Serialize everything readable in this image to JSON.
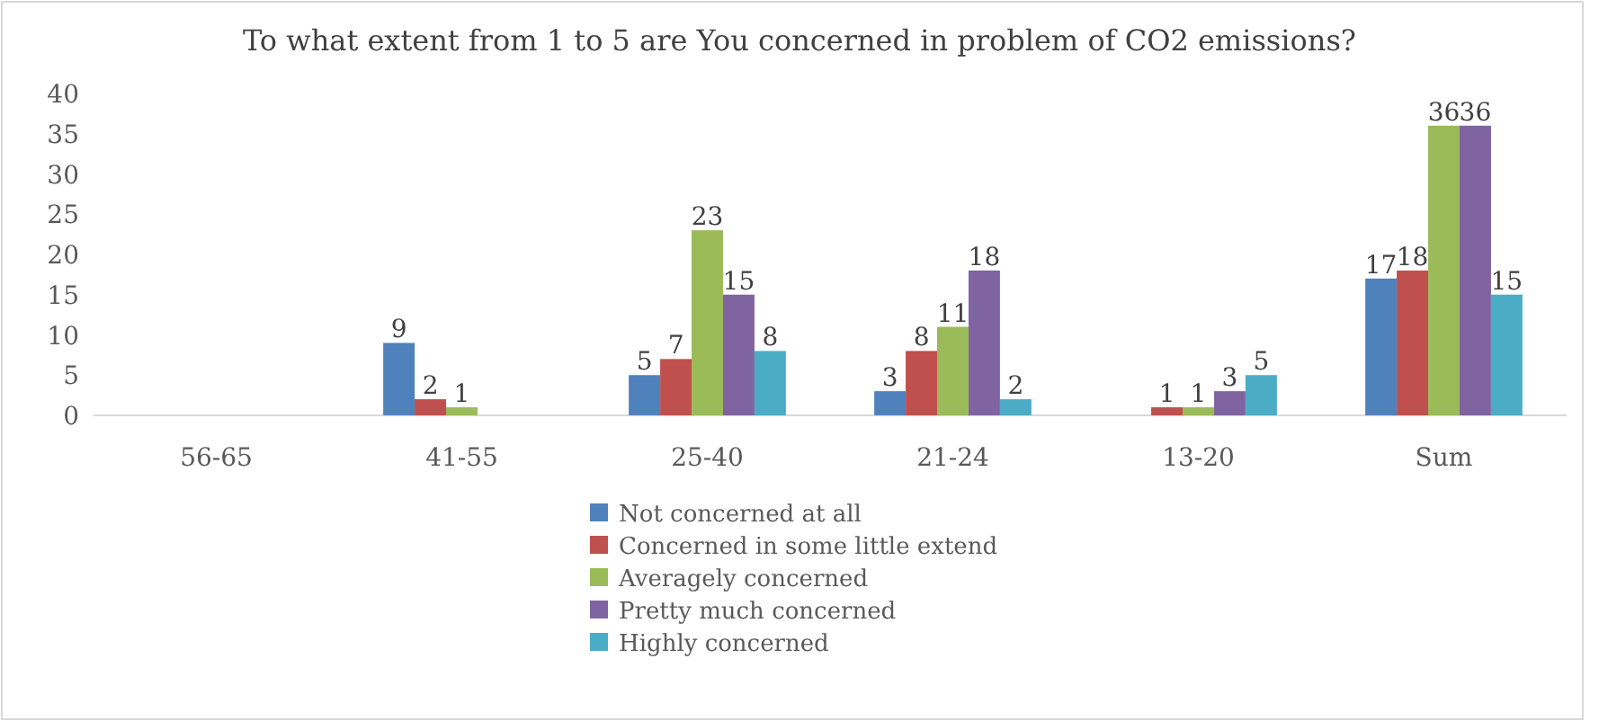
{
  "chart_data": {
    "type": "bar",
    "title": "To what extent from 1 to 5 are You concerned in problem of CO2 emissions?",
    "categories": [
      "56-65",
      "41-55",
      "25-40",
      "21-24",
      "13-20",
      "Sum"
    ],
    "series": [
      {
        "name": "Not concerned at all",
        "color": "#4f81bd",
        "values": [
          null,
          9,
          5,
          3,
          null,
          17
        ]
      },
      {
        "name": "Concerned in some little extend",
        "color": "#c0504d",
        "values": [
          null,
          2,
          7,
          8,
          1,
          18
        ]
      },
      {
        "name": "Averagely concerned",
        "color": "#9bbb59",
        "values": [
          null,
          1,
          23,
          11,
          1,
          36
        ]
      },
      {
        "name": "Pretty much concerned",
        "color": "#8064a2",
        "values": [
          null,
          null,
          15,
          18,
          3,
          36
        ]
      },
      {
        "name": "Highly concerned",
        "color": "#4bacc6",
        "values": [
          null,
          null,
          8,
          2,
          5,
          15
        ]
      }
    ],
    "ylim": [
      0,
      40
    ],
    "yticks": [
      0,
      5,
      10,
      15,
      20,
      25,
      30,
      35,
      40
    ],
    "grid": false,
    "legend": "bottom",
    "data_labels": true
  }
}
